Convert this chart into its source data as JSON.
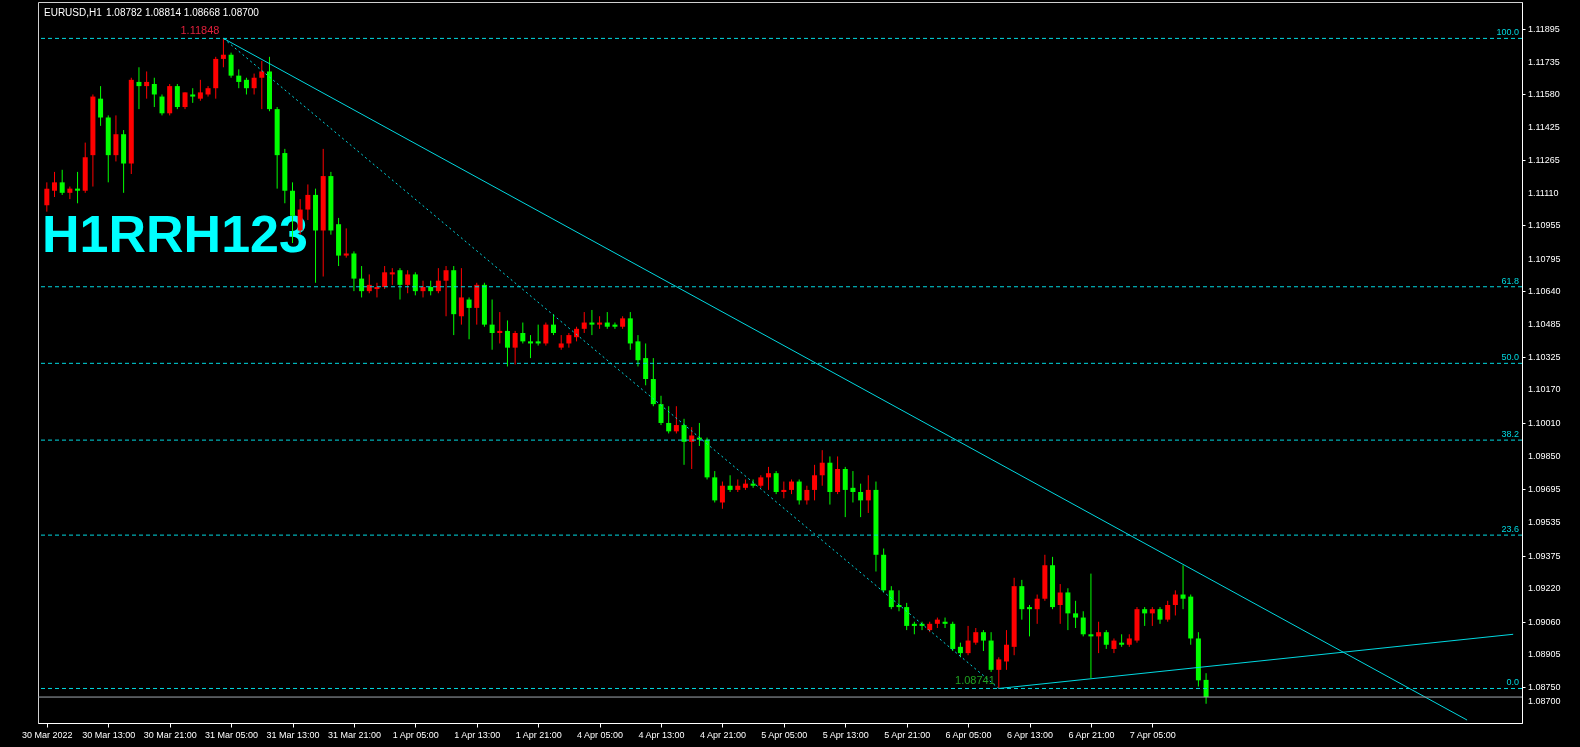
{
  "chart_data": {
    "type": "candlestick",
    "title": "EURUSD,H1",
    "subtitle": "1.08782 1.08814 1.08668 1.08700",
    "categories": [
      "30 Mar 2022",
      null,
      null,
      null,
      null,
      null,
      null,
      null,
      "30 Mar 13:00",
      null,
      null,
      null,
      null,
      null,
      null,
      null,
      "30 Mar 21:00",
      null,
      null,
      null,
      null,
      null,
      null,
      null,
      "31 Mar 05:00",
      null,
      null,
      null,
      null,
      null,
      null,
      null,
      "31 Mar 13:00",
      null,
      null,
      null,
      null,
      null,
      null,
      null,
      "31 Mar 21:00",
      null,
      null,
      null,
      null,
      null,
      null,
      null,
      "1 Apr 05:00",
      null,
      null,
      null,
      null,
      null,
      null,
      null,
      "1 Apr 13:00",
      null,
      null,
      null,
      null,
      null,
      null,
      null,
      "1 Apr 21:00",
      null,
      null,
      null,
      null,
      null,
      null,
      null,
      "4 Apr 05:00",
      null,
      null,
      null,
      null,
      null,
      null,
      null,
      "4 Apr 13:00",
      null,
      null,
      null,
      null,
      null,
      null,
      null,
      "4 Apr 21:00",
      null,
      null,
      null,
      null,
      null,
      null,
      null,
      "5 Apr 05:00",
      null,
      null,
      null,
      null,
      null,
      null,
      null,
      "5 Apr 13:00",
      null,
      null,
      null,
      null,
      null,
      null,
      null,
      "5 Apr 21:00",
      null,
      null,
      null,
      null,
      null,
      null,
      null,
      "6 Apr 05:00",
      null,
      null,
      null,
      null,
      null,
      null,
      null,
      "6 Apr 13:00",
      null,
      null,
      null,
      null,
      null,
      null,
      null,
      "6 Apr 21:00",
      null,
      null,
      null,
      null,
      null,
      null,
      null,
      "7 Apr 05:00",
      null,
      null,
      null,
      null,
      null,
      null,
      null,
      null,
      null,
      null,
      null,
      null,
      null,
      null,
      null,
      null,
      null,
      null,
      null,
      null,
      null,
      null,
      null,
      null,
      null,
      null,
      null,
      null,
      null,
      null,
      null,
      null,
      null,
      null,
      null,
      null,
      null,
      null,
      null,
      null,
      null,
      null,
      null,
      null,
      null,
      null,
      null
    ],
    "ohlc": [
      [
        1.1105,
        1.1116,
        1.1102,
        1.1113
      ],
      [
        1.1112,
        1.1121,
        1.1109,
        1.1116
      ],
      [
        1.1116,
        1.1122,
        1.111,
        1.1111
      ],
      [
        1.1111,
        1.1114,
        1.1108,
        1.1113
      ],
      [
        1.1113,
        1.1121,
        1.1106,
        1.1112
      ],
      [
        1.1112,
        1.1135,
        1.1111,
        1.1128
      ],
      [
        1.1129,
        1.1158,
        1.1114,
        1.1157
      ],
      [
        1.1156,
        1.1162,
        1.1143,
        1.1147
      ],
      [
        1.1147,
        1.1148,
        1.1116,
        1.1129
      ],
      [
        1.1129,
        1.1148,
        1.1126,
        1.1139
      ],
      [
        1.1139,
        1.1141,
        1.1111,
        1.1125
      ],
      [
        1.1125,
        1.1166,
        1.112,
        1.1165
      ],
      [
        1.1164,
        1.1171,
        1.1151,
        1.1162
      ],
      [
        1.1162,
        1.1169,
        1.1156,
        1.1164
      ],
      [
        1.1163,
        1.1166,
        1.1152,
        1.1158
      ],
      [
        1.1157,
        1.1158,
        1.1148,
        1.1149
      ],
      [
        1.1149,
        1.1163,
        1.1148,
        1.1162
      ],
      [
        1.1162,
        1.1163,
        1.1151,
        1.1152
      ],
      [
        1.1152,
        1.1159,
        1.1151,
        1.1159
      ],
      [
        1.1158,
        1.1161,
        1.1154,
        1.1157
      ],
      [
        1.1156,
        1.1165,
        1.1155,
        1.1159
      ],
      [
        1.1158,
        1.1162,
        1.1157,
        1.1161
      ],
      [
        1.1161,
        1.1176,
        1.1156,
        1.1175
      ],
      [
        1.1175,
        1.11848,
        1.1171,
        1.1177
      ],
      [
        1.1177,
        1.1178,
        1.1166,
        1.1167
      ],
      [
        1.1167,
        1.117,
        1.1161,
        1.1164
      ],
      [
        1.1165,
        1.1166,
        1.1158,
        1.1161
      ],
      [
        1.1161,
        1.1168,
        1.1158,
        1.1166
      ],
      [
        1.1166,
        1.1174,
        1.1151,
        1.1169
      ],
      [
        1.1169,
        1.1176,
        1.115,
        1.1151
      ],
      [
        1.1151,
        1.1152,
        1.1113,
        1.1129
      ],
      [
        1.113,
        1.1132,
        1.1106,
        1.1112
      ],
      [
        1.1112,
        1.1116,
        1.1087,
        1.11
      ],
      [
        1.1093,
        1.1108,
        1.1091,
        1.1103
      ],
      [
        1.1103,
        1.1115,
        1.1098,
        1.111
      ],
      [
        1.111,
        1.1113,
        1.1068,
        1.1093
      ],
      [
        1.1093,
        1.1132,
        1.1071,
        1.1119
      ],
      [
        1.1119,
        1.1121,
        1.1091,
        1.1093
      ],
      [
        1.1096,
        1.1099,
        1.1076,
        1.1081
      ],
      [
        1.1081,
        1.1094,
        1.108,
        1.1082
      ],
      [
        1.1082,
        1.1083,
        1.1064,
        1.107
      ],
      [
        1.107,
        1.1076,
        1.1061,
        1.1064
      ],
      [
        1.1064,
        1.1072,
        1.1063,
        1.1067
      ],
      [
        1.1065,
        1.1068,
        1.1061,
        1.1066
      ],
      [
        1.1066,
        1.1076,
        1.1065,
        1.1073
      ],
      [
        1.1072,
        1.1075,
        1.1067,
        1.1073
      ],
      [
        1.1074,
        1.1075,
        1.106,
        1.1067
      ],
      [
        1.1067,
        1.1074,
        1.1063,
        1.1072
      ],
      [
        1.1072,
        1.1073,
        1.1062,
        1.1064
      ],
      [
        1.1064,
        1.1069,
        1.1061,
        1.1066
      ],
      [
        1.1066,
        1.1069,
        1.1062,
        1.1064
      ],
      [
        1.1064,
        1.1075,
        1.1063,
        1.1069
      ],
      [
        1.1069,
        1.1076,
        1.1052,
        1.1074
      ],
      [
        1.1074,
        1.1076,
        1.1043,
        1.1053
      ],
      [
        1.1052,
        1.1075,
        1.1048,
        1.1061
      ],
      [
        1.106,
        1.1061,
        1.1041,
        1.1056
      ],
      [
        1.1056,
        1.1068,
        1.1048,
        1.1067
      ],
      [
        1.1067,
        1.1068,
        1.1047,
        1.1048
      ],
      [
        1.1048,
        1.106,
        1.1036,
        1.1044
      ],
      [
        1.1044,
        1.1054,
        1.1039,
        1.1045
      ],
      [
        1.1045,
        1.105,
        1.1028,
        1.1037
      ],
      [
        1.1037,
        1.1045,
        1.1029,
        1.1044
      ],
      [
        1.1044,
        1.1049,
        1.1039,
        1.104
      ],
      [
        1.104,
        1.1043,
        1.1032,
        1.1039
      ],
      [
        1.104,
        1.1048,
        1.1038,
        1.1039
      ],
      [
        1.1039,
        1.1049,
        1.1038,
        1.1048
      ],
      [
        1.1048,
        1.1053,
        1.1043,
        1.1044
      ],
      [
        1.1037,
        1.1043,
        1.1036,
        1.1039
      ],
      [
        1.1039,
        1.1044,
        1.1037,
        1.1043
      ],
      [
        1.1042,
        1.1047,
        1.104,
        1.1046
      ],
      [
        1.1046,
        1.1054,
        1.1044,
        1.1049
      ],
      [
        1.1049,
        1.1055,
        1.1043,
        1.1048
      ],
      [
        1.1048,
        1.1052,
        1.1046,
        1.1049
      ],
      [
        1.1049,
        1.1054,
        1.1046,
        1.1047
      ],
      [
        1.1048,
        1.1049,
        1.1046,
        1.1047
      ],
      [
        1.1047,
        1.1052,
        1.1046,
        1.1051
      ],
      [
        1.1051,
        1.1054,
        1.1036,
        1.1039
      ],
      [
        1.104,
        1.1043,
        1.1028,
        1.1031
      ],
      [
        1.1032,
        1.1039,
        1.1019,
        1.1022
      ],
      [
        1.1022,
        1.1032,
        1.1009,
        1.101
      ],
      [
        1.101,
        1.1014,
        1.1,
        1.1001
      ],
      [
        1.1001,
        1.1009,
        1.0996,
        1.0997
      ],
      [
        1.0997,
        1.1009,
        1.0996,
        1.1
      ],
      [
        1.1,
        1.1003,
        1.0981,
        1.0992
      ],
      [
        1.0992,
        1.0999,
        1.0979,
        1.0995
      ],
      [
        1.0994,
        1.1001,
        1.099,
        1.0993
      ],
      [
        1.0993,
        1.0994,
        1.0974,
        1.0975
      ],
      [
        1.0975,
        1.0978,
        1.0963,
        1.0964
      ],
      [
        1.0963,
        1.0973,
        1.096,
        1.0971
      ],
      [
        1.0971,
        1.0976,
        1.0968,
        1.0969
      ],
      [
        1.0969,
        1.0974,
        1.0968,
        1.0971
      ],
      [
        1.097,
        1.0974,
        1.0969,
        1.0972
      ],
      [
        1.0972,
        1.0974,
        1.097,
        1.0971
      ],
      [
        1.0971,
        1.0976,
        1.097,
        1.0975
      ],
      [
        1.0975,
        1.098,
        1.0969,
        1.0977
      ],
      [
        1.0977,
        1.0978,
        1.0967,
        1.0968
      ],
      [
        1.0968,
        1.0973,
        1.0965,
        1.0969
      ],
      [
        1.0969,
        1.0974,
        1.0967,
        1.0973
      ],
      [
        1.0973,
        1.0974,
        1.0962,
        1.0964
      ],
      [
        1.0964,
        1.0971,
        1.0962,
        1.0969
      ],
      [
        1.0969,
        1.0981,
        1.0964,
        1.0976
      ],
      [
        1.0976,
        1.0988,
        1.0971,
        1.0982
      ],
      [
        1.0982,
        1.0985,
        1.0962,
        1.0968
      ],
      [
        1.0968,
        1.0985,
        1.0967,
        1.0979
      ],
      [
        1.0979,
        1.098,
        1.0956,
        1.0969
      ],
      [
        1.097,
        1.0978,
        1.0963,
        1.0968
      ],
      [
        1.0968,
        1.0972,
        1.0956,
        1.0964
      ],
      [
        1.0964,
        1.0976,
        1.0958,
        1.0969
      ],
      [
        1.0969,
        1.0973,
        1.093,
        1.0938
      ],
      [
        1.0938,
        1.0941,
        1.092,
        1.0921
      ],
      [
        1.0921,
        1.0923,
        1.0912,
        1.0913
      ],
      [
        1.0914,
        1.0921,
        1.0911,
        1.0913
      ],
      [
        1.0913,
        1.0915,
        1.0902,
        1.0904
      ],
      [
        1.0905,
        1.0906,
        1.09,
        1.0904
      ],
      [
        1.0905,
        1.0906,
        1.0902,
        1.0904
      ],
      [
        1.0902,
        1.0906,
        1.0901,
        1.0905
      ],
      [
        1.0905,
        1.0908,
        1.0903,
        1.0907
      ],
      [
        1.0906,
        1.0908,
        1.0903,
        1.0905
      ],
      [
        1.0905,
        1.0906,
        1.0892,
        1.0893
      ],
      [
        1.0894,
        1.0896,
        1.0889,
        1.0891
      ],
      [
        1.0891,
        1.0904,
        1.089,
        1.0897
      ],
      [
        1.0896,
        1.0903,
        1.0895,
        1.0901
      ],
      [
        1.0901,
        1.0902,
        1.0892,
        1.0897
      ],
      [
        1.0897,
        1.0901,
        1.0882,
        1.0883
      ],
      [
        1.0883,
        1.0889,
        1.08741,
        1.0888
      ],
      [
        1.0887,
        1.0902,
        1.0883,
        1.0895
      ],
      [
        1.0894,
        1.0927,
        1.089,
        1.0923
      ],
      [
        1.0923,
        1.0926,
        1.0907,
        1.0912
      ],
      [
        1.0913,
        1.0914,
        1.0899,
        1.0912
      ],
      [
        1.0912,
        1.0919,
        1.0905,
        1.0917
      ],
      [
        1.0917,
        1.0938,
        1.0916,
        1.0933
      ],
      [
        1.0933,
        1.0937,
        1.0912,
        1.0913
      ],
      [
        1.0914,
        1.0924,
        1.0905,
        1.092
      ],
      [
        1.092,
        1.0922,
        1.0902,
        1.091
      ],
      [
        1.091,
        1.0916,
        1.0903,
        1.0908
      ],
      [
        1.0908,
        1.0911,
        1.0899,
        1.09
      ],
      [
        1.09,
        1.0929,
        1.0879,
        1.0899
      ],
      [
        1.0899,
        1.0906,
        1.0891,
        1.0901
      ],
      [
        1.0901,
        1.0902,
        1.0893,
        1.0895
      ],
      [
        1.0893,
        1.0898,
        1.0891,
        1.0897
      ],
      [
        1.0896,
        1.09,
        1.0894,
        1.0895
      ],
      [
        1.0895,
        1.09,
        1.0894,
        1.0898
      ],
      [
        1.0897,
        1.0913,
        1.0896,
        1.0912
      ],
      [
        1.0912,
        1.0913,
        1.0904,
        1.091
      ],
      [
        1.091,
        1.0913,
        1.0904,
        1.0912
      ],
      [
        1.0912,
        1.0913,
        1.0905,
        1.0907
      ],
      [
        1.0907,
        1.0916,
        1.0906,
        1.0914
      ],
      [
        1.0914,
        1.0921,
        1.0909,
        1.0919
      ],
      [
        1.0919,
        1.0933,
        1.0912,
        1.0917
      ],
      [
        1.0918,
        1.0919,
        1.0895,
        1.0898
      ],
      [
        1.0898,
        1.0901,
        1.0875,
        1.0878
      ],
      [
        1.08782,
        1.08814,
        1.08668,
        1.087
      ],
      null,
      null,
      null,
      null,
      null,
      null,
      null,
      null,
      null,
      null,
      null,
      null,
      null,
      null,
      null,
      null,
      null,
      null,
      null,
      null,
      null,
      null,
      null,
      null,
      null,
      null,
      null,
      null,
      null,
      null,
      null,
      null,
      null,
      null,
      null,
      null,
      null,
      null,
      null,
      null
    ],
    "colors": [
      "#ff0000",
      "#ff0000",
      "#00ff00",
      "#ff0000",
      "#00ff00",
      "#ff0000",
      "#ff0000",
      "#00ff00",
      "#00ff00",
      "#ff0000",
      "#00ff00",
      "#ff0000",
      "#00ff00",
      "#ff0000",
      "#00ff00",
      "#00ff00",
      "#ff0000",
      "#00ff00",
      "#ff0000",
      "#00ff00",
      "#ff0000",
      "#ff0000",
      "#ff0000",
      "#ff0000",
      "#00ff00",
      "#00ff00",
      "#00ff00",
      "#ff0000",
      "#ff0000",
      "#00ff00",
      "#00ff00",
      "#00ff00",
      "#00ff00",
      "#ff0000",
      "#ff0000",
      "#00ff00",
      "#ff0000",
      "#00ff00",
      "#00ff00",
      "#ff0000",
      "#00ff00",
      "#00ff00",
      "#ff0000",
      "#ff0000",
      "#ff0000",
      "#ff0000",
      "#00ff00",
      "#ff0000",
      "#00ff00",
      "#ff0000",
      "#00ff00",
      "#ff0000",
      "#ff0000",
      "#00ff00",
      "#ff0000",
      "#00ff00",
      "#ff0000",
      "#00ff00",
      "#00ff00",
      "#ff0000",
      "#00ff00",
      "#ff0000",
      "#00ff00",
      "#00ff00",
      "#00ff00",
      "#ff0000",
      "#00ff00",
      "#ff0000",
      "#ff0000",
      "#ff0000",
      "#ff0000",
      "#00ff00",
      "#ff0000",
      "#00ff00",
      "#00ff00",
      "#ff0000",
      "#00ff00",
      "#00ff00",
      "#00ff00",
      "#00ff00",
      "#00ff00",
      "#00ff00",
      "#ff0000",
      "#00ff00",
      "#ff0000",
      "#00ff00",
      "#00ff00",
      "#00ff00",
      "#ff0000",
      "#00ff00",
      "#ff0000",
      "#ff0000",
      "#00ff00",
      "#ff0000",
      "#ff0000",
      "#00ff00",
      "#ff0000",
      "#ff0000",
      "#00ff00",
      "#ff0000",
      "#ff0000",
      "#ff0000",
      "#00ff00",
      "#ff0000",
      "#00ff00",
      "#00ff00",
      "#00ff00",
      "#ff0000",
      "#00ff00",
      "#00ff00",
      "#00ff00",
      "#00ff00",
      "#00ff00",
      "#00ff00",
      "#00ff00",
      "#ff0000",
      "#ff0000",
      "#00ff00",
      "#00ff00",
      "#00ff00",
      "#ff0000",
      "#ff0000",
      "#00ff00",
      "#00ff00",
      "#ff0000",
      "#ff0000",
      "#ff0000",
      "#00ff00",
      "#00ff00",
      "#ff0000",
      "#ff0000",
      "#00ff00",
      "#ff0000",
      "#00ff00",
      "#00ff00",
      "#00ff00",
      "#00ff00",
      "#ff0000",
      "#00ff00",
      "#ff0000",
      "#00ff00",
      "#ff0000",
      "#ff0000",
      "#00ff00",
      "#ff0000",
      "#00ff00",
      "#ff0000",
      "#ff0000",
      "#00ff00",
      "#00ff00",
      "#00ff00",
      "#00ff00",
      null,
      null,
      null,
      null,
      null,
      null,
      null,
      null,
      null,
      null,
      null,
      null,
      null,
      null,
      null,
      null,
      null,
      null,
      null,
      null,
      null,
      null,
      null,
      null,
      null,
      null,
      null,
      null,
      null,
      null,
      null,
      null,
      null,
      null,
      null,
      null,
      null,
      null,
      null,
      null
    ],
    "series": [
      {
        "type": "line",
        "color": "#00d8e0",
        "values": [
          null,
          null,
          null,
          null,
          null,
          null,
          null,
          null,
          null,
          null,
          null,
          null,
          null,
          null,
          null,
          null,
          null,
          null,
          null,
          null,
          null,
          null,
          null,
          1.11848,
          null,
          null,
          null,
          null,
          null,
          null,
          null,
          null,
          null,
          null,
          null,
          null,
          null,
          null,
          null,
          null,
          null,
          null,
          null,
          null,
          null,
          null,
          null,
          null,
          null,
          null,
          null,
          null,
          null,
          null,
          null,
          null,
          null,
          null,
          null,
          null,
          null,
          null,
          null,
          null,
          null,
          null,
          null,
          null,
          null,
          null,
          null,
          null,
          null,
          null,
          null,
          null,
          null,
          null,
          null,
          null,
          null,
          null,
          null,
          null,
          null,
          null,
          null,
          null,
          null,
          null,
          null,
          null,
          null,
          null,
          null,
          null,
          null,
          null,
          null,
          null,
          null,
          null,
          null,
          null,
          null,
          null,
          null,
          null,
          null,
          null,
          null,
          null,
          null,
          null,
          null,
          null,
          null,
          null,
          null,
          null,
          null,
          null,
          null,
          null,
          null,
          null,
          null,
          null,
          null,
          null,
          null,
          null,
          null,
          null,
          null,
          null,
          null,
          null,
          null,
          null,
          null,
          null,
          null,
          null,
          null,
          null,
          null,
          null,
          null,
          null,
          null,
          null,
          null,
          null,
          null,
          null,
          null,
          null,
          null,
          null,
          null,
          null,
          null,
          null,
          null,
          null,
          null,
          null,
          null,
          null,
          null,
          null,
          null,
          null,
          null,
          null,
          null,
          null,
          null,
          null,
          null,
          null,
          null,
          null,
          null,
          1.0859,
          null,
          null,
          null,
          null,
          null,
          null
        ]
      },
      {
        "type": "line",
        "color": "#00d8e0",
        "line_style": "dotted",
        "values": [
          null,
          null,
          null,
          null,
          null,
          null,
          null,
          null,
          null,
          null,
          null,
          null,
          null,
          null,
          null,
          null,
          null,
          null,
          null,
          null,
          null,
          null,
          null,
          1.11848,
          null,
          null,
          null,
          null,
          null,
          null,
          null,
          null,
          null,
          null,
          null,
          null,
          null,
          null,
          null,
          null,
          null,
          null,
          null,
          null,
          null,
          null,
          null,
          null,
          null,
          null,
          null,
          null,
          null,
          null,
          null,
          null,
          null,
          null,
          null,
          null,
          null,
          null,
          null,
          null,
          null,
          null,
          null,
          null,
          null,
          null,
          null,
          null,
          null,
          null,
          null,
          null,
          null,
          null,
          null,
          null,
          null,
          null,
          null,
          null,
          null,
          null,
          null,
          null,
          null,
          null,
          null,
          null,
          null,
          null,
          null,
          null,
          null,
          null,
          null,
          null,
          null,
          null,
          null,
          null,
          null,
          null,
          null,
          null,
          null,
          null,
          null,
          null,
          null,
          null,
          null,
          null,
          null,
          null,
          null,
          null,
          null,
          null,
          null,
          null,
          1.08741,
          null,
          null,
          null,
          null,
          null,
          null,
          null,
          null,
          null,
          null,
          null,
          null,
          null,
          null,
          null,
          null,
          null,
          null,
          null,
          null,
          null,
          null,
          null,
          null,
          null,
          null,
          null,
          null,
          null,
          null,
          null,
          null,
          null,
          null,
          null,
          null,
          null,
          null,
          null,
          null,
          null,
          null,
          null,
          null,
          null,
          null,
          null,
          null,
          null,
          null,
          null,
          null,
          null,
          null,
          null,
          null,
          null,
          null,
          null,
          null,
          null,
          null,
          null,
          null,
          null,
          null,
          null
        ]
      },
      {
        "type": "line",
        "color": "#00d8e0",
        "values": [
          null,
          null,
          null,
          null,
          null,
          null,
          null,
          null,
          null,
          null,
          null,
          null,
          null,
          null,
          null,
          null,
          null,
          null,
          null,
          null,
          null,
          null,
          null,
          null,
          null,
          null,
          null,
          null,
          null,
          null,
          null,
          null,
          null,
          null,
          null,
          null,
          null,
          null,
          null,
          null,
          null,
          null,
          null,
          null,
          null,
          null,
          null,
          null,
          null,
          null,
          null,
          null,
          null,
          null,
          null,
          null,
          null,
          null,
          null,
          null,
          null,
          null,
          null,
          null,
          null,
          null,
          null,
          null,
          null,
          null,
          null,
          null,
          null,
          null,
          null,
          null,
          null,
          null,
          null,
          null,
          null,
          null,
          null,
          null,
          null,
          null,
          null,
          null,
          null,
          null,
          null,
          null,
          null,
          null,
          null,
          null,
          null,
          null,
          null,
          null,
          null,
          null,
          null,
          null,
          null,
          null,
          null,
          null,
          null,
          null,
          null,
          null,
          null,
          null,
          null,
          null,
          null,
          null,
          null,
          null,
          null,
          null,
          null,
          null,
          1.08741,
          null,
          null,
          null,
          null,
          null,
          null,
          null,
          null,
          null,
          null,
          null,
          null,
          null,
          null,
          null,
          null,
          null,
          null,
          null,
          null,
          null,
          null,
          null,
          null,
          null,
          null,
          null,
          null,
          null,
          null,
          null,
          null,
          null,
          null,
          null,
          null,
          null,
          null,
          null,
          null,
          null,
          null,
          null,
          null,
          null,
          null,
          null,
          null,
          null,
          null,
          null,
          null,
          null,
          null,
          null,
          null,
          null,
          null,
          null,
          null,
          null,
          null,
          null,
          null,
          null,
          null,
          1.09
        ]
      }
    ],
    "ylim": [
      1.08576,
      1.12022
    ],
    "yticks": [
      1.11895,
      1.11735,
      {
        "value": 1.1158,
        "label": "1.11580"
      },
      1.11425,
      1.11265,
      {
        "value": 1.1111,
        "label": "1.11110"
      },
      1.10955,
      1.10795,
      {
        "value": 1.1064,
        "label": "1.10640"
      },
      1.10485,
      1.10325,
      {
        "value": 1.1017,
        "label": "1.10170"
      },
      {
        "value": 1.1001,
        "label": "1.10010"
      },
      {
        "value": 1.0985,
        "label": "1.09850"
      },
      1.09695,
      1.09535,
      1.09375,
      {
        "value": 1.0922,
        "label": "1.09220"
      },
      {
        "value": 1.0906,
        "label": "1.09060"
      },
      1.08905,
      {
        "value": 1.0875,
        "label": "1.08750"
      }
    ],
    "ref_lines": [
      {
        "axis": "y",
        "value": 1.11848,
        "color": "#00d8e0",
        "line_style": "dashed"
      },
      {
        "axis": "y",
        "value": 1.10661,
        "color": "#00d8e0",
        "line_style": "dashed"
      },
      {
        "axis": "y",
        "value": 1.10295,
        "color": "#00d8e0",
        "line_style": "dashed"
      },
      {
        "axis": "y",
        "value": 1.09928,
        "color": "#00d8e0",
        "line_style": "dashed"
      },
      {
        "axis": "y",
        "value": 1.09474,
        "color": "#00d8e0",
        "line_style": "dashed"
      },
      {
        "axis": "y",
        "value": 1.08741,
        "color": "#00d8e0",
        "line_style": "dashed"
      },
      {
        "axis": "y",
        "value": 1.087,
        "label": "1.08700",
        "color": "#a0a8b0",
        "line_style": "solid"
      }
    ],
    "annotations": [
      "H1RRH123",
      {
        "text": "1.11848",
        "y": 1.11848
      },
      {
        "text": "1.08741",
        "y": 1.08741
      },
      {
        "text": "100.0",
        "y": 1.11848
      },
      {
        "text": "61.8",
        "y": 1.10661
      },
      {
        "text": "50.0",
        "y": 1.10295
      },
      {
        "text": "38.2",
        "y": 1.09928
      },
      {
        "text": "23.6",
        "y": 1.09474
      },
      {
        "text": "0.0",
        "y": 1.08741
      }
    ]
  }
}
